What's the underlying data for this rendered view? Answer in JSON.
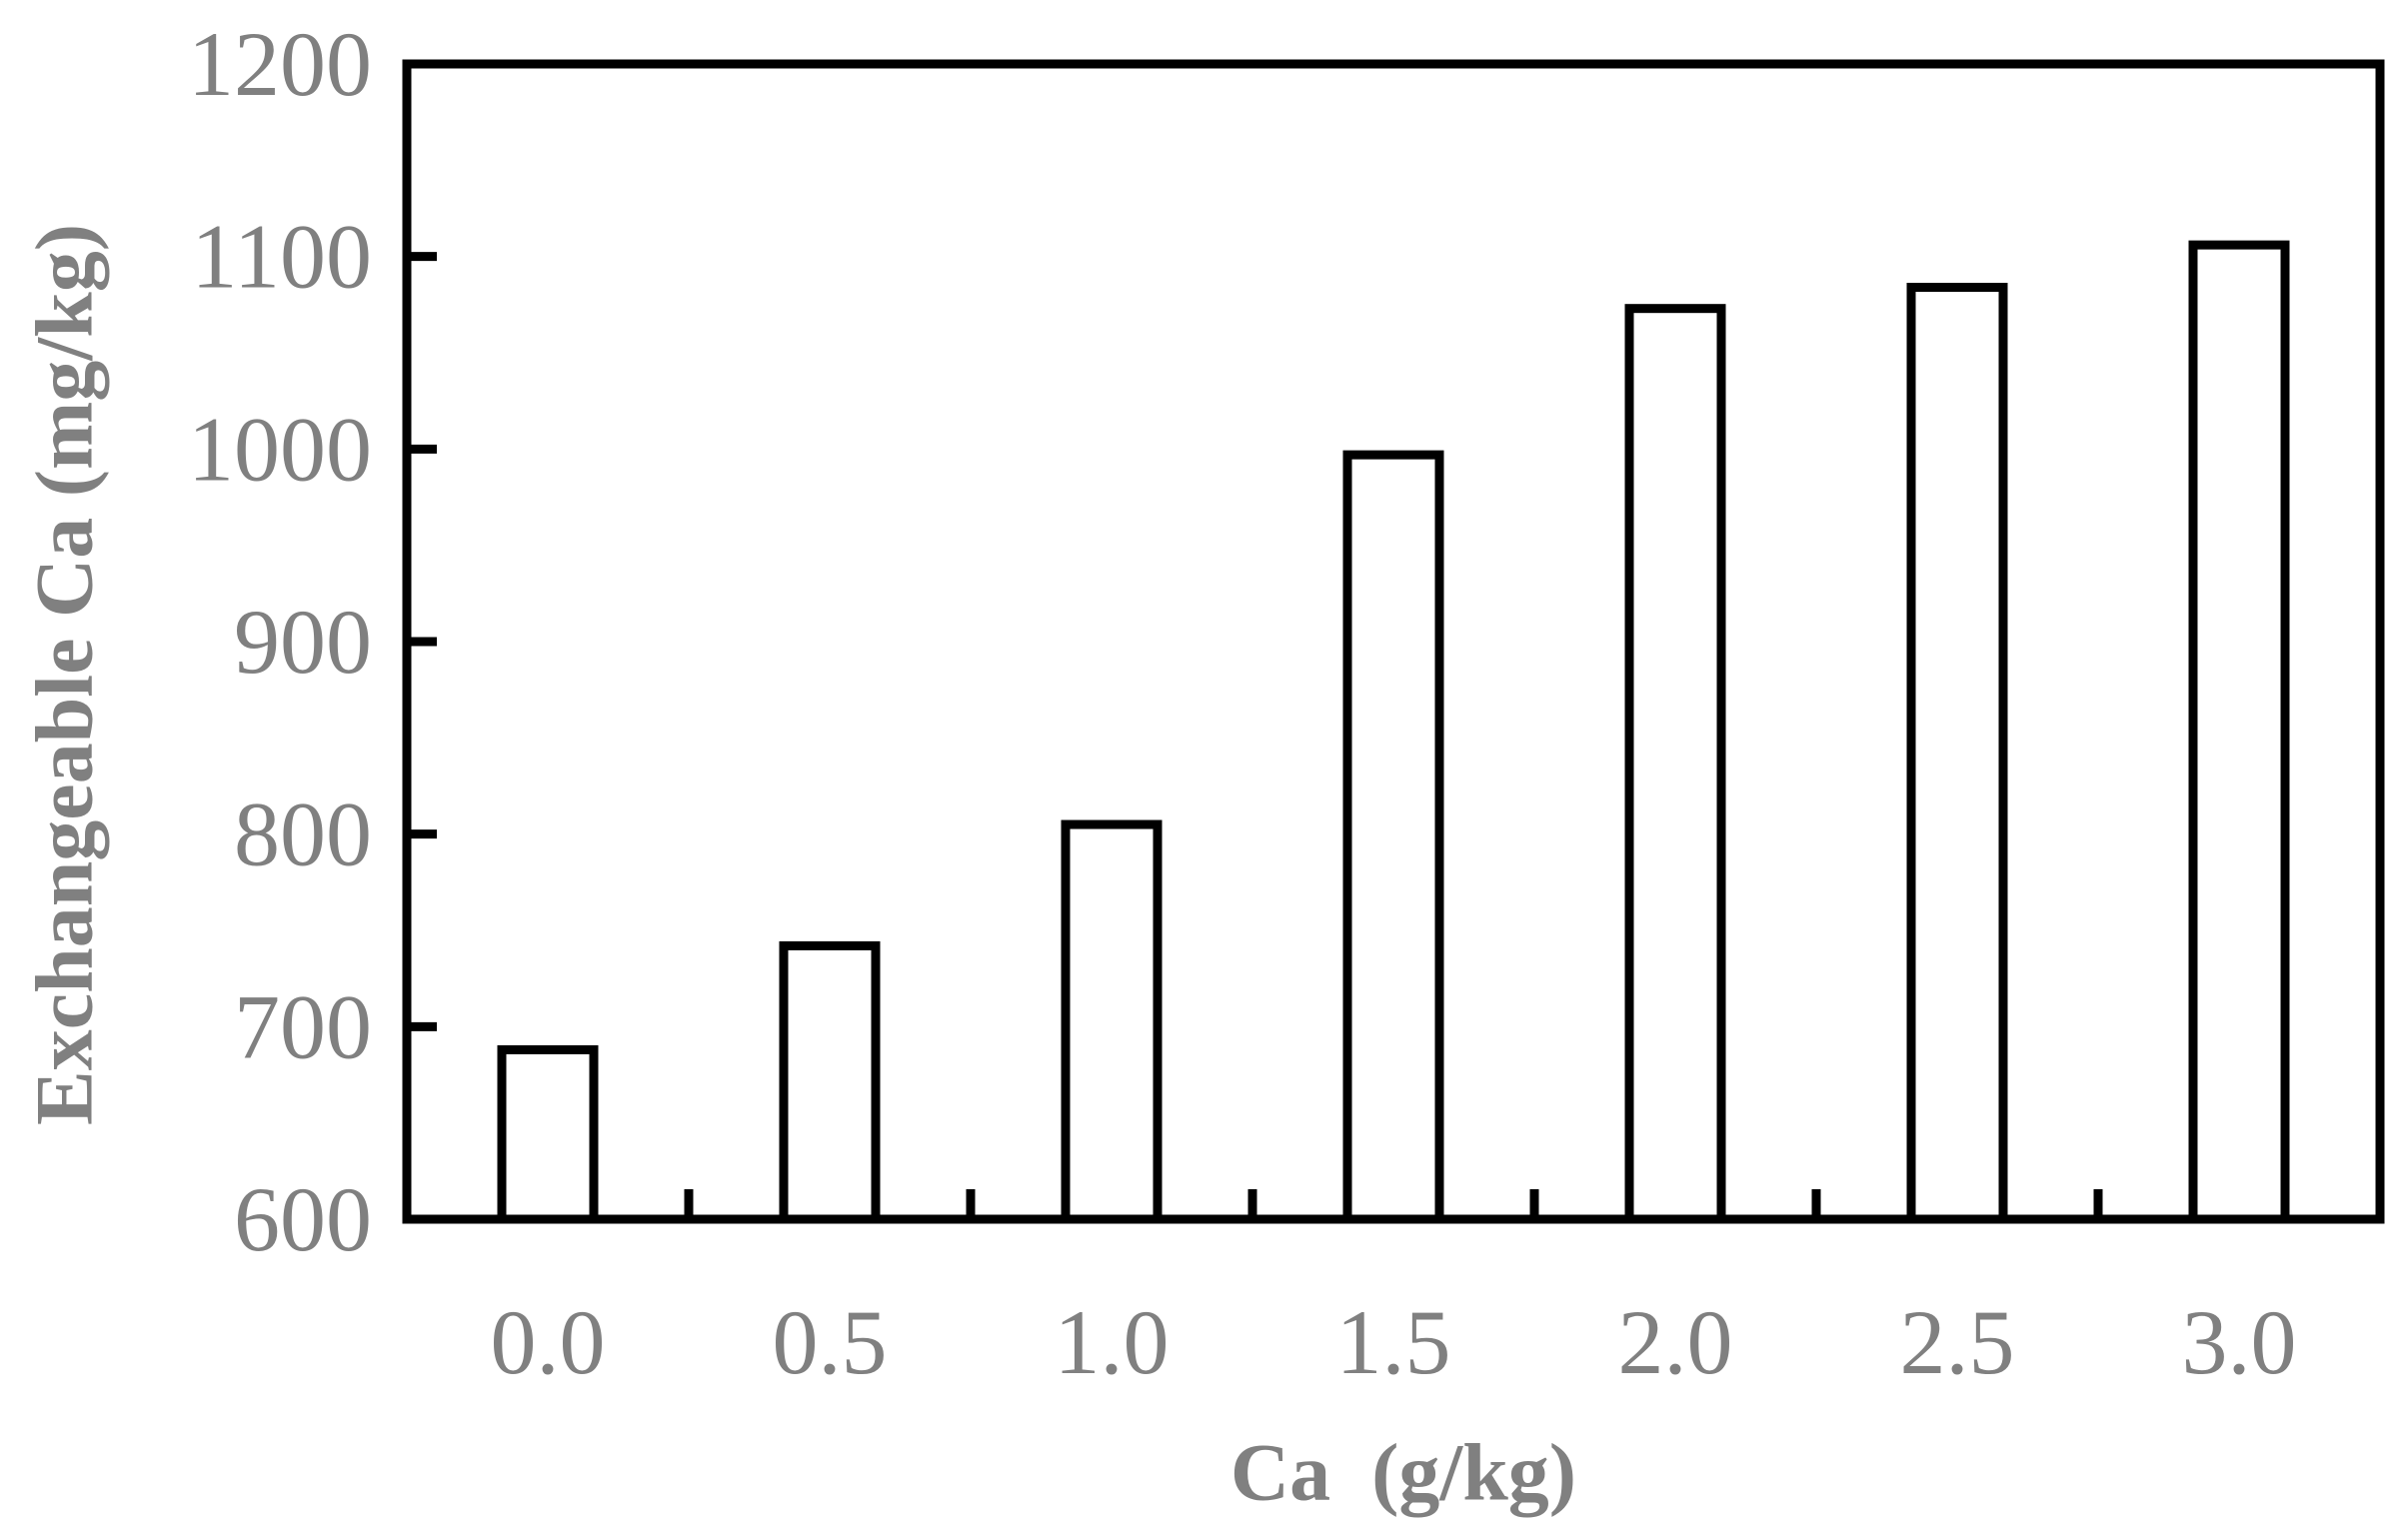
{
  "chart_data": {
    "type": "bar",
    "categories": [
      "0.0",
      "0.5",
      "1.0",
      "1.5",
      "2.0",
      "2.5",
      "3.0"
    ],
    "values": [
      688,
      742,
      805,
      997,
      1073,
      1084,
      1106
    ],
    "xlabel": "Ca  (g/kg)",
    "ylabel": "Exchangeable Ca (mg/kg)",
    "ylim": [
      600,
      1200
    ],
    "yticks": [
      "600",
      "700",
      "800",
      "900",
      "1000",
      "1100",
      "1200"
    ],
    "grid": false
  },
  "colors": {
    "axis": "#000000",
    "bar_fill": "#ffffff",
    "bar_stroke": "#000000",
    "text": "#808080"
  }
}
